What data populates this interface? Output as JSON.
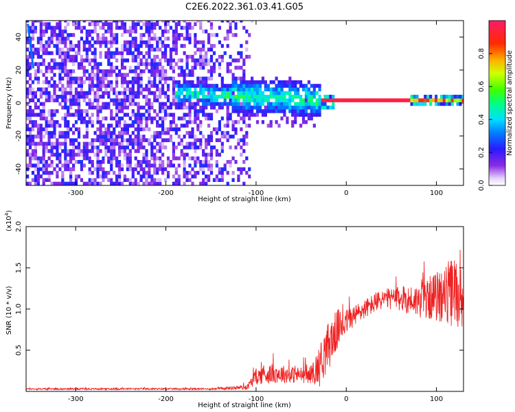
{
  "chart_data": [
    {
      "type": "heatmap",
      "title": "C2E6.2022.361.03.41.G05",
      "xlabel": "Height of straight line (km)",
      "ylabel": "Frequency (Hz)",
      "xlim": [
        -355,
        130
      ],
      "ylim": [
        -50,
        50
      ],
      "xticks": [
        -300,
        -200,
        -100,
        0,
        100
      ],
      "yticks": [
        -40,
        -20,
        0,
        20,
        40
      ],
      "colorbar": {
        "label": "Normalized spectral amplitude",
        "range": [
          0,
          1
        ],
        "ticks": [
          "0.0",
          "0.2",
          "0.4",
          "0.6",
          "0.8"
        ],
        "colormap": "hsv-purple-to-red"
      },
      "regions": [
        {
          "desc": "broadband low-amplitude noise",
          "x": [
            -355,
            -115
          ],
          "f": [
            -50,
            50
          ],
          "amp": [
            0.05,
            0.25
          ]
        },
        {
          "desc": "narrowband signal emerging",
          "x": [
            -190,
            -30
          ],
          "f_center": 5,
          "spread": 8,
          "amp": [
            0.2,
            0.5
          ]
        },
        {
          "desc": "strong carrier near 0 Hz",
          "x": [
            -30,
            70
          ],
          "f_center": 0,
          "spread": 1,
          "amp": 0.95
        },
        {
          "desc": "carrier with small spread",
          "x": [
            70,
            130
          ],
          "f_center": 1,
          "spread": 3,
          "amp": [
            0.4,
            0.9
          ]
        }
      ]
    },
    {
      "type": "line",
      "xlabel": "Height of straight line (km)",
      "ylabel": "SNR (10 * v/v)",
      "y_scale_label": "(x10",
      "y_scale_exp": "4",
      "xlim": [
        -355,
        130
      ],
      "ylim": [
        0,
        2.0
      ],
      "xticks": [
        -300,
        -200,
        -100,
        0,
        100
      ],
      "yticks": [
        "0.5",
        "1.0",
        "1.5",
        "2.0"
      ],
      "series": [
        {
          "color": "#ee2222",
          "envelope_x": [
            -355,
            -250,
            -150,
            -110,
            -100,
            -80,
            -60,
            -40,
            -30,
            -20,
            -10,
            0,
            20,
            40,
            60,
            80,
            100,
            120,
            130
          ],
          "envelope_y": [
            0.03,
            0.03,
            0.03,
            0.05,
            0.18,
            0.22,
            0.2,
            0.2,
            0.3,
            0.55,
            0.75,
            0.85,
            1.0,
            1.12,
            1.12,
            1.1,
            1.15,
            1.2,
            1.15
          ],
          "noise": [
            0.01,
            0.01,
            0.01,
            0.03,
            0.1,
            0.12,
            0.1,
            0.1,
            0.25,
            0.3,
            0.25,
            0.15,
            0.12,
            0.12,
            0.15,
            0.2,
            0.3,
            0.45,
            0.4
          ]
        }
      ]
    }
  ]
}
